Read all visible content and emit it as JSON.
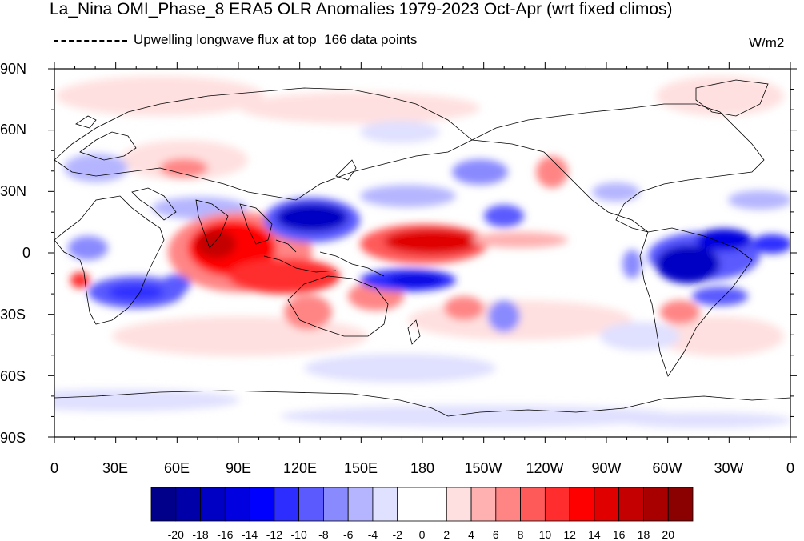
{
  "title": "La_Nina OMI_Phase_8 ERA5 OLR Anomalies 1979-2023 Oct-Apr (wrt fixed climos)",
  "legend": {
    "line_label": "Upwelling longwave flux at top",
    "count_label": "166 data points"
  },
  "units": "W/m2",
  "axes": {
    "lat_labels": [
      "90N",
      "60N",
      "30N",
      "0",
      "30S",
      "60S",
      "90S"
    ],
    "lon_labels": [
      "0",
      "30E",
      "60E",
      "90E",
      "120E",
      "150E",
      "180",
      "150W",
      "120W",
      "90W",
      "60W",
      "30W",
      "0"
    ]
  },
  "colorbar": {
    "labels": [
      "-20",
      "-18",
      "-16",
      "-14",
      "-12",
      "-10",
      "-8",
      "-6",
      "-4",
      "-2",
      "0",
      "2",
      "4",
      "6",
      "8",
      "10",
      "12",
      "14",
      "16",
      "18",
      "20"
    ],
    "colors": [
      "#00008b",
      "#0000a8",
      "#0000c4",
      "#0000e0",
      "#0000ff",
      "#2d2dff",
      "#5a5aff",
      "#8a8aff",
      "#b5b5ff",
      "#e0e0ff",
      "#ffffff",
      "#ffffff",
      "#ffe0e0",
      "#ffb0b0",
      "#ff8585",
      "#ff5a5a",
      "#ff2d2d",
      "#ff0000",
      "#e00000",
      "#c40000",
      "#a80000",
      "#8b0000"
    ]
  }
}
